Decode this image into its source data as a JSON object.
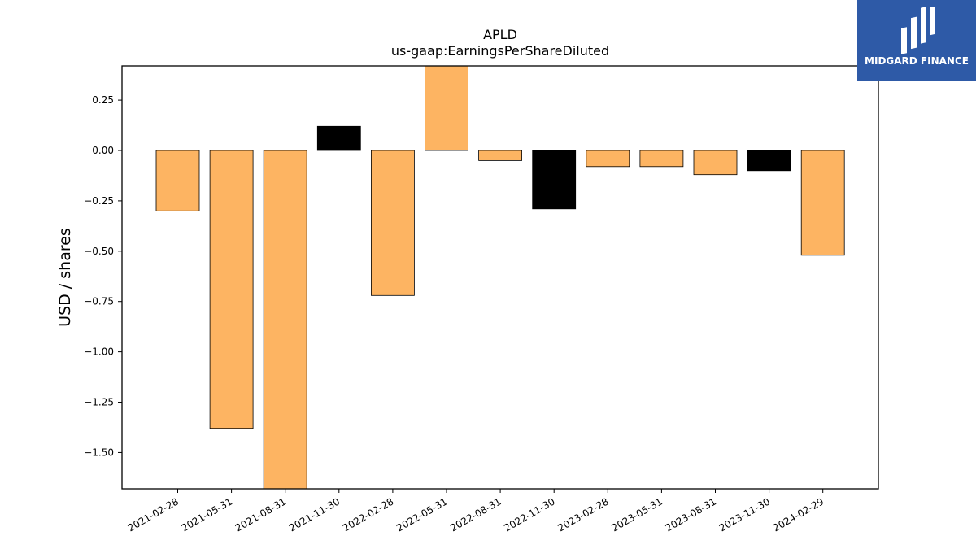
{
  "chart_data": {
    "type": "bar",
    "title": "APLD",
    "subtitle": "us-gaap:EarningsPerShareDiluted",
    "xlabel": "",
    "ylabel": "USD / shares",
    "ylim": [
      -1.68,
      0.42
    ],
    "yticks": [
      0.25,
      0.0,
      -0.25,
      -0.5,
      -0.75,
      -1.0,
      -1.25,
      -1.5
    ],
    "ytick_labels": [
      "0.25",
      "0.00",
      "−0.25",
      "−0.50",
      "−0.75",
      "−1.00",
      "−1.25",
      "−1.50"
    ],
    "categories": [
      "2021-02-28",
      "2021-05-31",
      "2021-08-31",
      "2021-11-30",
      "2022-02-28",
      "2022-05-31",
      "2022-08-31",
      "2022-11-30",
      "2023-02-28",
      "2023-05-31",
      "2023-08-31",
      "2023-11-30",
      "2024-02-29"
    ],
    "values": [
      -0.3,
      -1.38,
      -1.75,
      0.12,
      -0.72,
      0.48,
      -0.05,
      -0.29,
      -0.08,
      -0.08,
      -0.12,
      -0.1,
      -0.52
    ],
    "bar_colors": [
      "#fdb462",
      "#fdb462",
      "#fdb462",
      "#000000",
      "#fdb462",
      "#fdb462",
      "#fdb462",
      "#000000",
      "#fdb462",
      "#fdb462",
      "#fdb462",
      "#000000",
      "#fdb462"
    ],
    "grid": false,
    "legend": "none"
  },
  "brand": {
    "name": "MIDGARD FINANCE",
    "background": "#2e5aa7"
  }
}
